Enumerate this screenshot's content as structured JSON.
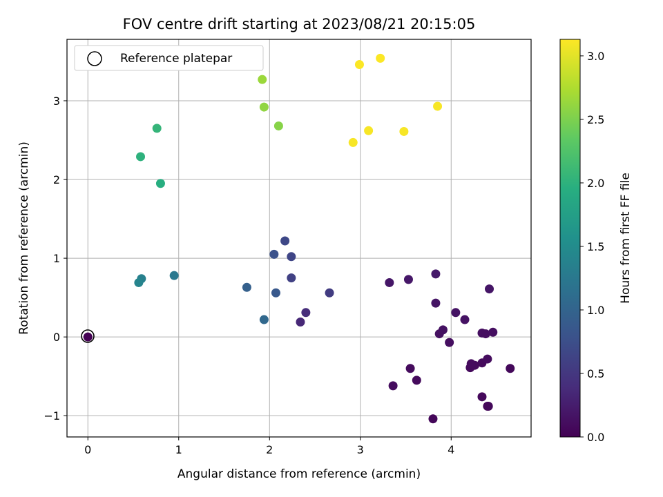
{
  "chart_data": {
    "type": "scatter",
    "title": "FOV centre drift starting at 2023/08/21 20:15:05",
    "xlabel": "Angular distance from reference (arcmin)",
    "ylabel": "Rotation from reference (arcmin)",
    "xlim": [
      -0.23,
      4.88
    ],
    "ylim": [
      -1.27,
      3.78
    ],
    "xticks": [
      0,
      1,
      2,
      3,
      4
    ],
    "yticks": [
      -1,
      0,
      1,
      2,
      3
    ],
    "grid": true,
    "legend": {
      "placement": "top-left",
      "entries": [
        "Reference platepar"
      ]
    },
    "colorbar": {
      "label": "Hours from first FF file",
      "colormap": "viridis",
      "range": [
        0.0,
        3.13
      ],
      "ticks": [
        "0.0",
        "0.5",
        "1.0",
        "1.5",
        "2.0",
        "2.5",
        "3.0"
      ]
    },
    "reference_point": {
      "x": 0.0,
      "y": 0.0
    },
    "points": [
      {
        "x": 0.0,
        "y": 0.0,
        "c": 0.0
      },
      {
        "x": 3.8,
        "y": -1.04,
        "c": 0.05
      },
      {
        "x": 4.4,
        "y": -0.88,
        "c": 0.05
      },
      {
        "x": 4.41,
        "y": -0.88,
        "c": 0.06
      },
      {
        "x": 4.34,
        "y": -0.76,
        "c": 0.07
      },
      {
        "x": 3.62,
        "y": -0.55,
        "c": 0.08
      },
      {
        "x": 3.36,
        "y": -0.62,
        "c": 0.1
      },
      {
        "x": 3.55,
        "y": -0.4,
        "c": 0.09
      },
      {
        "x": 4.65,
        "y": -0.4,
        "c": 0.06
      },
      {
        "x": 4.21,
        "y": -0.39,
        "c": 0.08
      },
      {
        "x": 4.26,
        "y": -0.36,
        "c": 0.08
      },
      {
        "x": 4.34,
        "y": -0.33,
        "c": 0.08
      },
      {
        "x": 4.22,
        "y": -0.34,
        "c": 0.09
      },
      {
        "x": 4.4,
        "y": -0.28,
        "c": 0.1
      },
      {
        "x": 3.98,
        "y": -0.07,
        "c": 0.12
      },
      {
        "x": 3.87,
        "y": 0.04,
        "c": 0.13
      },
      {
        "x": 3.91,
        "y": 0.09,
        "c": 0.14
      },
      {
        "x": 4.34,
        "y": 0.05,
        "c": 0.12
      },
      {
        "x": 4.38,
        "y": 0.04,
        "c": 0.11
      },
      {
        "x": 4.46,
        "y": 0.06,
        "c": 0.12
      },
      {
        "x": 4.15,
        "y": 0.22,
        "c": 0.15
      },
      {
        "x": 4.05,
        "y": 0.31,
        "c": 0.16
      },
      {
        "x": 3.83,
        "y": 0.43,
        "c": 0.17
      },
      {
        "x": 4.42,
        "y": 0.61,
        "c": 0.18
      },
      {
        "x": 3.32,
        "y": 0.69,
        "c": 0.19
      },
      {
        "x": 3.53,
        "y": 0.73,
        "c": 0.2
      },
      {
        "x": 3.83,
        "y": 0.8,
        "c": 0.22
      },
      {
        "x": 2.34,
        "y": 0.19,
        "c": 0.35
      },
      {
        "x": 2.4,
        "y": 0.31,
        "c": 0.4
      },
      {
        "x": 2.66,
        "y": 0.56,
        "c": 0.55
      },
      {
        "x": 2.24,
        "y": 0.75,
        "c": 0.6
      },
      {
        "x": 2.24,
        "y": 1.02,
        "c": 0.65
      },
      {
        "x": 2.17,
        "y": 1.22,
        "c": 0.68
      },
      {
        "x": 2.05,
        "y": 1.05,
        "c": 0.78
      },
      {
        "x": 2.07,
        "y": 0.56,
        "c": 0.85
      },
      {
        "x": 1.75,
        "y": 0.63,
        "c": 0.95
      },
      {
        "x": 1.94,
        "y": 0.22,
        "c": 1.05
      },
      {
        "x": 0.95,
        "y": 0.78,
        "c": 1.25
      },
      {
        "x": 0.59,
        "y": 0.74,
        "c": 1.35
      },
      {
        "x": 0.56,
        "y": 0.69,
        "c": 1.4
      },
      {
        "x": 0.8,
        "y": 1.95,
        "c": 1.95
      },
      {
        "x": 0.58,
        "y": 2.29,
        "c": 2.0
      },
      {
        "x": 0.76,
        "y": 2.65,
        "c": 2.05
      },
      {
        "x": 2.1,
        "y": 2.68,
        "c": 2.55
      },
      {
        "x": 1.94,
        "y": 2.92,
        "c": 2.6
      },
      {
        "x": 1.92,
        "y": 3.27,
        "c": 2.65
      },
      {
        "x": 2.92,
        "y": 2.47,
        "c": 3.1
      },
      {
        "x": 3.09,
        "y": 2.62,
        "c": 3.1
      },
      {
        "x": 3.48,
        "y": 2.61,
        "c": 3.1
      },
      {
        "x": 3.85,
        "y": 2.93,
        "c": 3.1
      },
      {
        "x": 2.99,
        "y": 3.46,
        "c": 3.12
      },
      {
        "x": 3.22,
        "y": 3.54,
        "c": 3.12
      }
    ]
  }
}
